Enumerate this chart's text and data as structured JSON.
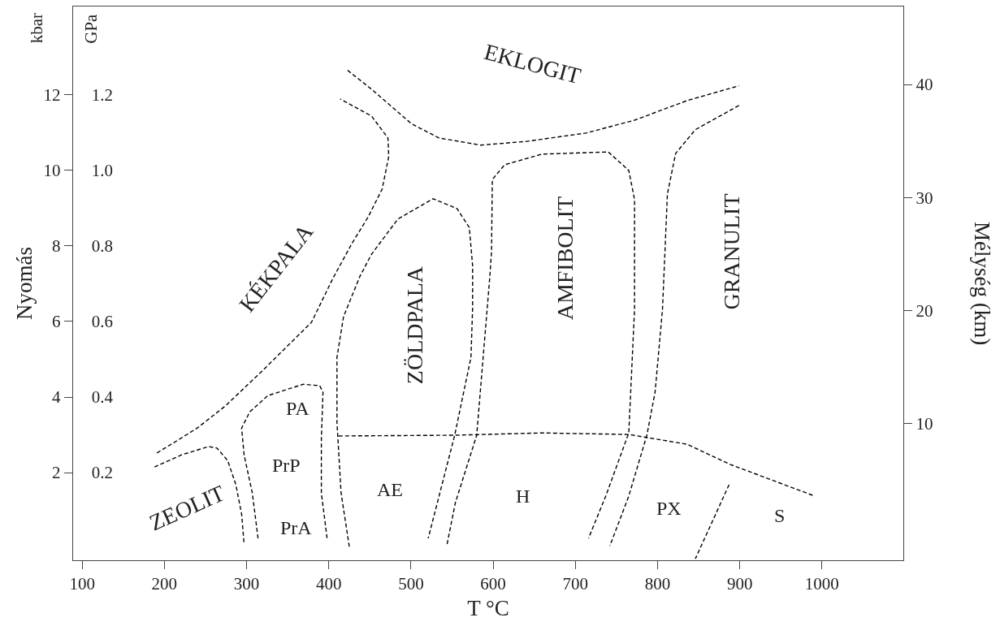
{
  "chart_data": {
    "type": "line",
    "xlabel": "T °C",
    "ylabel": "Nyomás",
    "y2label": "Mélység (km)",
    "y3label": "GPa",
    "annotations": [
      "kbar",
      "EKLOGIT",
      "KÉKPALA",
      "ZÖLDPALA",
      "AMFIBOLIT",
      "GRANULIT",
      "ZEOLIT",
      "PA",
      "PrP",
      "PrA",
      "AE",
      "H",
      "PX",
      "S"
    ],
    "series": [
      {
        "color": "#000000",
        "x": [
          191,
          215,
          240,
          274,
          319,
          353,
          379,
          405,
          428,
          448,
          465,
          473,
          472,
          452,
          414
        ],
        "values": [
          2.52,
          2.84,
          3.18,
          3.76,
          4.69,
          5.42,
          5.98,
          7.14,
          8.06,
          8.77,
          9.51,
          10.37,
          10.86,
          11.44,
          11.89
        ]
      },
      {
        "color": "#000000",
        "x": [
          188,
          221,
          254,
          264,
          277,
          287,
          294,
          297
        ],
        "values": [
          2.15,
          2.47,
          2.69,
          2.65,
          2.32,
          1.68,
          0.9,
          0.11
        ]
      },
      {
        "color": "#000000",
        "x": [
          425,
          415,
          410,
          410,
          418,
          438,
          452,
          484,
          527,
          556,
          571,
          575,
          575,
          573,
          553,
          521
        ],
        "values": [
          0.04,
          1.46,
          3.33,
          5.05,
          6.13,
          7.2,
          7.78,
          8.71,
          9.25,
          8.99,
          8.49,
          7.48,
          6.34,
          5.05,
          2.97,
          0.26
        ]
      },
      {
        "color": "#000000",
        "x": [
          544,
          554,
          580,
          596,
          598,
          599,
          614,
          659,
          740,
          765,
          772,
          772,
          772,
          765,
          737,
          716
        ],
        "values": [
          0.11,
          1.2,
          2.99,
          7.2,
          7.85,
          9.76,
          10.15,
          10.43,
          10.49,
          10.0,
          9.23,
          7.2,
          6.32,
          3.05,
          1.38,
          0.26
        ]
      },
      {
        "color": "#000000",
        "x": [
          899,
          846,
          822,
          812,
          806,
          797,
          787,
          765,
          742
        ],
        "values": [
          11.72,
          11.08,
          10.45,
          9.38,
          6.32,
          4.13,
          2.99,
          1.38,
          0.06
        ]
      },
      {
        "color": "#000000",
        "x": [
          423,
          452,
          501,
          534,
          585,
          641,
          713,
          772,
          836,
          899
        ],
        "values": [
          12.65,
          12.15,
          11.23,
          10.86,
          10.67,
          10.77,
          10.99,
          11.33,
          11.85,
          12.24
        ]
      },
      {
        "color": "#000000",
        "x": [
          314,
          307,
          297,
          294,
          304,
          326,
          369,
          389,
          393,
          391,
          391,
          398
        ],
        "values": [
          0.26,
          1.46,
          2.47,
          3.18,
          3.61,
          4.04,
          4.34,
          4.3,
          4.13,
          2.9,
          1.46,
          0.26
        ]
      },
      {
        "color": "#000000",
        "x": [
          412,
          553,
          659,
          765,
          836,
          888,
          991
        ],
        "values": [
          2.97,
          2.99,
          3.05,
          3.01,
          2.75,
          2.22,
          1.38
        ]
      },
      {
        "color": "#000000",
        "x": [
          887,
          846
        ],
        "values": [
          1.68,
          -0.28
        ]
      }
    ],
    "xlim": [
      89,
      1099
    ],
    "xticks": [
      100,
      200,
      300,
      400,
      500,
      600,
      700,
      800,
      900,
      1000
    ],
    "ylim": [
      -0.32,
      14.34
    ],
    "yticks": [
      2,
      4,
      6,
      8,
      10,
      12
    ],
    "y3lim": [
      -0.032,
      1.434
    ],
    "y3ticks": [
      0.2,
      0.4,
      0.6,
      0.8,
      {
        "value": 1,
        "label": "1.0"
      },
      1.2
    ],
    "y2lim": [
      -2.1,
      46.9
    ],
    "y2ticks": [
      10,
      20,
      30,
      40
    ],
    "line_style": "dashed",
    "marker": "none",
    "grid": false
  }
}
